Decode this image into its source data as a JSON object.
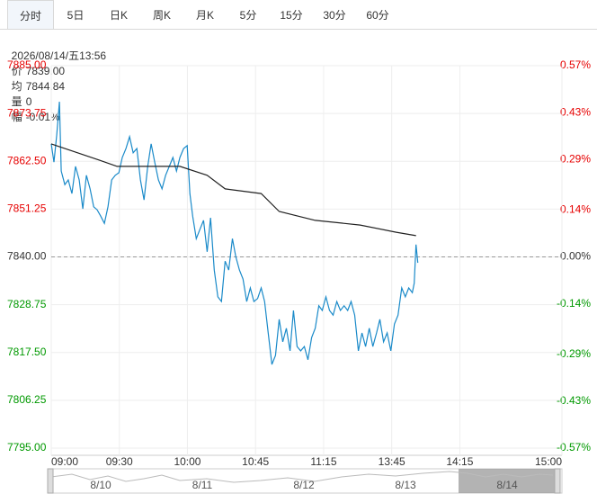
{
  "tabs": [
    "分时",
    "5日",
    "日K",
    "周K",
    "月K",
    "5分",
    "15分",
    "30分",
    "60分"
  ],
  "info": {
    "datetime": "2026/08/14/五13:56",
    "price_label": "价",
    "price": "7839.00",
    "avg_label": "均",
    "avg": "7844.84",
    "volume_label": "量",
    "volume": "0",
    "change_label": "幅",
    "change": "-0.01%"
  },
  "chart_data": {
    "type": "line",
    "baseline": 7840,
    "up_color": "#e60000",
    "down_color": "#009900",
    "xlim": [
      0,
      225
    ],
    "xticks": [
      {
        "value": 0,
        "label": "09:00"
      },
      {
        "value": 30,
        "label": "09:30"
      },
      {
        "value": 60,
        "label": "10:00"
      },
      {
        "value": 90,
        "label": "10:45"
      },
      {
        "value": 120,
        "label": "11:15"
      },
      {
        "value": 150,
        "label": "13:45"
      },
      {
        "value": 180,
        "label": "14:15"
      },
      {
        "value": 225,
        "label": "15:00"
      }
    ],
    "ylim": [
      7795,
      7885
    ],
    "yticks": [
      {
        "value": 7795,
        "label": "7795.00"
      },
      {
        "value": 7806.25,
        "label": "7806.25"
      },
      {
        "value": 7817.5,
        "label": "7817.50"
      },
      {
        "value": 7828.75,
        "label": "7828.75"
      },
      {
        "value": 7840,
        "label": "7840.00"
      },
      {
        "value": 7851.25,
        "label": "7851.25"
      },
      {
        "value": 7862.5,
        "label": "7862.50"
      },
      {
        "value": 7873.75,
        "label": "7873.75"
      },
      {
        "value": 7885,
        "label": "7885.00"
      }
    ],
    "y2lim": [
      -0.57,
      0.57
    ],
    "y2ticks": [
      {
        "value": -0.57,
        "label": "-0.57%"
      },
      {
        "value": -0.43,
        "label": "-0.43%"
      },
      {
        "value": -0.29,
        "label": "-0.29%"
      },
      {
        "value": -0.14,
        "label": "-0.14%"
      },
      {
        "value": 0,
        "label": "0.00%"
      },
      {
        "value": 0.14,
        "label": "0.14%"
      },
      {
        "value": 0.29,
        "label": "0.29%"
      },
      {
        "value": 0.43,
        "label": "0.43%"
      },
      {
        "value": 0.57,
        "label": "0.57%"
      }
    ],
    "grid": true,
    "series": [
      {
        "color": "#1a8ac9",
        "x": [
          0,
          1.2,
          2.4,
          3.6,
          4.4,
          6.0,
          7.5,
          9.1,
          10.7,
          12.3,
          13.9,
          15.5,
          17.1,
          18.7,
          20.2,
          21.8,
          23.4,
          25.0,
          26.6,
          28.2,
          29.8,
          31.3,
          32.9,
          34.5,
          36.1,
          37.7,
          39.3,
          40.9,
          42.5,
          44.0,
          45.6,
          47.2,
          48.8,
          50.4,
          52.0,
          53.6,
          55.2,
          56.7,
          58.3,
          59.9,
          61.1,
          62.3,
          63.9,
          65.5,
          67.1,
          68.7,
          70.2,
          71.8,
          73.4,
          75.0,
          76.6,
          78.2,
          79.8,
          81.3,
          82.9,
          84.5,
          86.1,
          87.7,
          89.3,
          90.9,
          92.5,
          94.0,
          95.6,
          97.2,
          98.8,
          100.4,
          102.0,
          103.6,
          105.2,
          106.7,
          108.3,
          109.9,
          111.5,
          113.1,
          114.7,
          116.3,
          117.9,
          119.4,
          121.0,
          122.6,
          124.2,
          125.8,
          127.4,
          129.0,
          130.6,
          132.1,
          133.7,
          135.3,
          136.9,
          138.5,
          140.1,
          141.7,
          143.3,
          144.8,
          146.4,
          148.0,
          149.6,
          151.2,
          152.8,
          154.4,
          156.0,
          157.5,
          159.1,
          159.9,
          160.7,
          161.5
        ],
        "values": [
          7866.6,
          7862.3,
          7868.7,
          7876.5,
          7860.2,
          7857.0,
          7858.1,
          7854.9,
          7861.3,
          7858.1,
          7851.3,
          7859.2,
          7856.0,
          7851.8,
          7851.1,
          7849.6,
          7847.9,
          7851.8,
          7858.1,
          7859.2,
          7859.8,
          7863.4,
          7865.5,
          7868.3,
          7864.5,
          7865.5,
          7858.1,
          7853.4,
          7861.3,
          7866.6,
          7862.3,
          7858.1,
          7856.0,
          7859.2,
          7861.3,
          7863.4,
          7860.2,
          7863.4,
          7865.5,
          7866.2,
          7854.9,
          7849.6,
          7844.3,
          7846.5,
          7848.6,
          7841.2,
          7849.2,
          7836.9,
          7830.6,
          7829.5,
          7839.0,
          7836.9,
          7844.3,
          7840.1,
          7836.9,
          7834.8,
          7829.5,
          7832.7,
          7829.5,
          7830.2,
          7832.7,
          7829.5,
          7822.1,
          7814.7,
          7816.8,
          7825.3,
          7820.0,
          7823.2,
          7817.9,
          7827.4,
          7818.9,
          7817.9,
          7818.9,
          7815.8,
          7821.0,
          7823.2,
          7828.5,
          7827.4,
          7830.6,
          7827.4,
          7826.3,
          7829.5,
          7827.4,
          7828.5,
          7827.4,
          7829.5,
          7826.3,
          7817.9,
          7822.1,
          7818.9,
          7823.2,
          7818.9,
          7822.1,
          7825.3,
          7820.0,
          7822.1,
          7817.9,
          7824.2,
          7826.3,
          7832.7,
          7830.6,
          7832.7,
          7831.6,
          7833.8,
          7842.9,
          7838.6
        ]
      },
      {
        "color": "#222222",
        "x": [
          0,
          21,
          29,
          56.7,
          68.7,
          76.6,
          92.5,
          100.4,
          116.3,
          136.1,
          152.0,
          160.7
        ],
        "values": [
          7866.6,
          7862.8,
          7861.3,
          7861.3,
          7859.2,
          7856.0,
          7854.9,
          7850.7,
          7848.6,
          7847.5,
          7845.8,
          7845.0
        ]
      }
    ]
  },
  "navigator": {
    "dates": [
      "8/10",
      "8/11",
      "8/12",
      "8/13",
      "8/14"
    ]
  }
}
